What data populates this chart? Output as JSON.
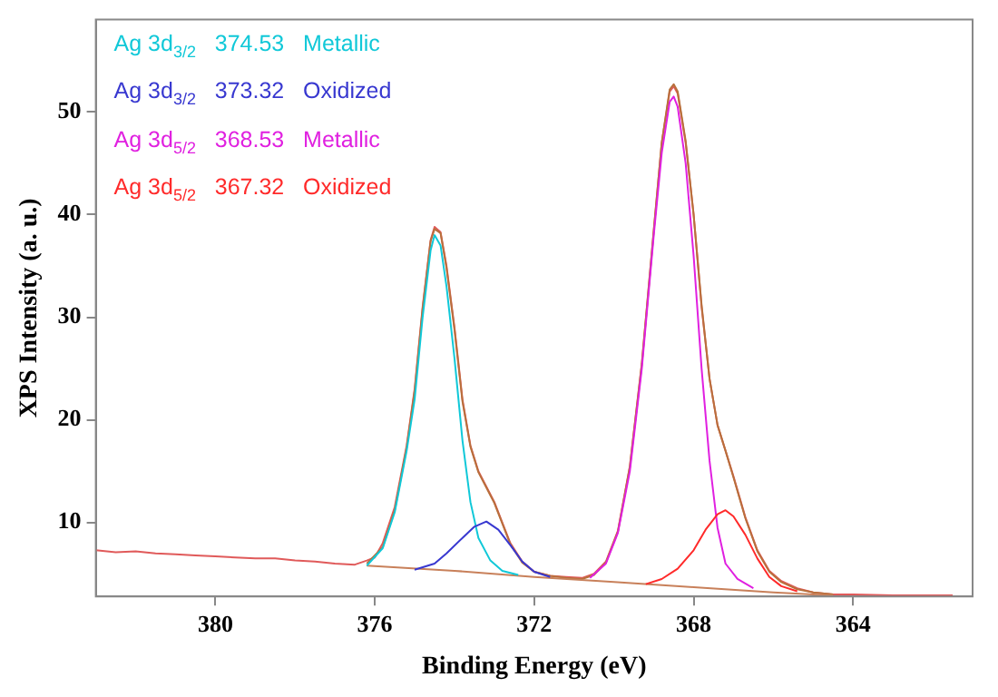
{
  "chart_data": {
    "type": "line",
    "xlabel": "Binding Energy (eV)",
    "ylabel": "XPS Intensity (a. u.)",
    "xlim": [
      383,
      361
    ],
    "xticks": [
      380,
      376,
      372,
      368,
      364
    ],
    "ylim": [
      2.8,
      59
    ],
    "yticks": [
      10,
      20,
      30,
      40,
      50
    ],
    "grid": false,
    "legend": "top left",
    "marker": "none",
    "line_style": "solid",
    "series": [
      {
        "color": "#e05a5a",
        "x": [
          383,
          382.5,
          382,
          381.5,
          381,
          380.5,
          380,
          379.5,
          379,
          378.5,
          378,
          377.5,
          377,
          376.5,
          376.2,
          376.0,
          375.8,
          375.5,
          375.2,
          375.0,
          374.8,
          374.6,
          374.5,
          374.35,
          374.2,
          374.0,
          373.8,
          373.6,
          373.4,
          373.2,
          373.0,
          372.8,
          372.6,
          372.3,
          372.0,
          371.6,
          371.2,
          370.8,
          370.5,
          370.2,
          369.9,
          369.6,
          369.3,
          369.0,
          368.8,
          368.6,
          368.5,
          368.4,
          368.2,
          368.0,
          367.8,
          367.6,
          367.4,
          367.2,
          367.0,
          366.7,
          366.4,
          366.1,
          365.8,
          365.4,
          365,
          364.5,
          364,
          363,
          362,
          361.5
        ],
        "values": [
          7.3,
          7.1,
          7.2,
          7.0,
          6.9,
          6.8,
          6.7,
          6.6,
          6.5,
          6.5,
          6.3,
          6.2,
          6.0,
          5.9,
          6.3,
          6.6,
          8,
          11.5,
          17.5,
          23,
          31,
          37.5,
          38.8,
          38.3,
          35,
          29,
          22,
          17.5,
          15,
          13.5,
          12,
          10,
          8,
          6.2,
          5.2,
          4.8,
          4.7,
          4.6,
          5.0,
          6.2,
          9.2,
          15.5,
          25.5,
          38.5,
          47,
          52,
          52.5,
          51.8,
          47,
          40,
          31,
          24,
          19.5,
          17,
          14.5,
          10.5,
          7.3,
          5.3,
          4.3,
          3.6,
          3.2,
          3.0,
          3.0,
          2.9,
          2.9,
          2.9
        ]
      },
      {
        "color": "#b8703c",
        "x": [
          376.2,
          375.8,
          375.5,
          375.2,
          375.0,
          374.8,
          374.6,
          374.5,
          374.35,
          374.2,
          374.0,
          373.8,
          373.6,
          373.4,
          373.2,
          373.0,
          372.8,
          372.6,
          372.3,
          372.0,
          371.6,
          371.2,
          370.8,
          370.5,
          370.2,
          369.9,
          369.6,
          369.3,
          369.0,
          368.8,
          368.6,
          368.5,
          368.4,
          368.2,
          368.0,
          367.8,
          367.6,
          367.4,
          367.2,
          367.0,
          366.7,
          366.4,
          366.1,
          365.8,
          365.4,
          365,
          364.5
        ],
        "values": [
          6.0,
          7.6,
          11.2,
          17.3,
          22.8,
          30.8,
          37.4,
          38.6,
          38.2,
          34.8,
          28.8,
          21.8,
          17.4,
          14.9,
          13.4,
          11.9,
          9.9,
          7.9,
          6.1,
          5.2,
          4.8,
          4.6,
          4.5,
          4.9,
          6.1,
          9.1,
          15.4,
          25.4,
          38.4,
          47,
          52.2,
          52.7,
          52,
          47.2,
          40,
          31.2,
          24,
          19.5,
          17,
          14.4,
          10.4,
          7.2,
          5.2,
          4.2,
          3.5,
          3.2,
          3.0
        ]
      },
      {
        "color": "#c8805a",
        "x": [
          376.2,
          374,
          372,
          370,
          368,
          366,
          365,
          364.5
        ],
        "values": [
          5.8,
          5.3,
          4.7,
          4.2,
          3.7,
          3.2,
          3.0,
          2.9
        ]
      },
      {
        "name": "Ag 3d$_{3/2}$   374.53   Metallic",
        "color": "#10c8d8",
        "x": [
          376.2,
          375.8,
          375.5,
          375.2,
          375.0,
          374.8,
          374.6,
          374.5,
          374.35,
          374.2,
          374.0,
          373.8,
          373.6,
          373.4,
          373.1,
          372.8,
          372.4
        ],
        "values": [
          5.8,
          7.5,
          11,
          17,
          22,
          30,
          36.5,
          38,
          37,
          33,
          26,
          18,
          12,
          8.5,
          6.3,
          5.3,
          4.9
        ]
      },
      {
        "name": "Ag 3d$_{3/2}$   373.32   Oxidized",
        "color": "#3838d0",
        "x": [
          375,
          374.5,
          374.2,
          373.8,
          373.5,
          373.2,
          372.9,
          372.6,
          372.3,
          372.0,
          371.6
        ],
        "values": [
          5.4,
          6,
          7,
          8.5,
          9.6,
          10.1,
          9.3,
          7.8,
          6.2,
          5.2,
          4.7
        ]
      },
      {
        "name": "Ag 3d$_{5/2}$   368.53   Metallic",
        "color": "#e020e0",
        "x": [
          370.6,
          370.2,
          369.9,
          369.6,
          369.3,
          369.0,
          368.8,
          368.6,
          368.5,
          368.4,
          368.2,
          368.0,
          367.8,
          367.6,
          367.4,
          367.2,
          366.9,
          366.5
        ],
        "values": [
          4.6,
          6,
          9,
          15,
          25,
          38,
          46,
          51,
          51.5,
          50.5,
          45,
          36,
          25,
          16,
          9.5,
          6,
          4.5,
          3.6
        ]
      },
      {
        "name": "Ag 3d$_{5/2}$   367.32   Oxidized",
        "color": "#ff2a2a",
        "x": [
          369.2,
          368.8,
          368.4,
          368.0,
          367.7,
          367.4,
          367.2,
          367.0,
          366.7,
          366.4,
          366.1,
          365.8,
          365.4
        ],
        "values": [
          4.0,
          4.5,
          5.5,
          7.3,
          9.3,
          10.8,
          11.2,
          10.6,
          8.8,
          6.5,
          4.7,
          3.8,
          3.3
        ]
      }
    ]
  }
}
